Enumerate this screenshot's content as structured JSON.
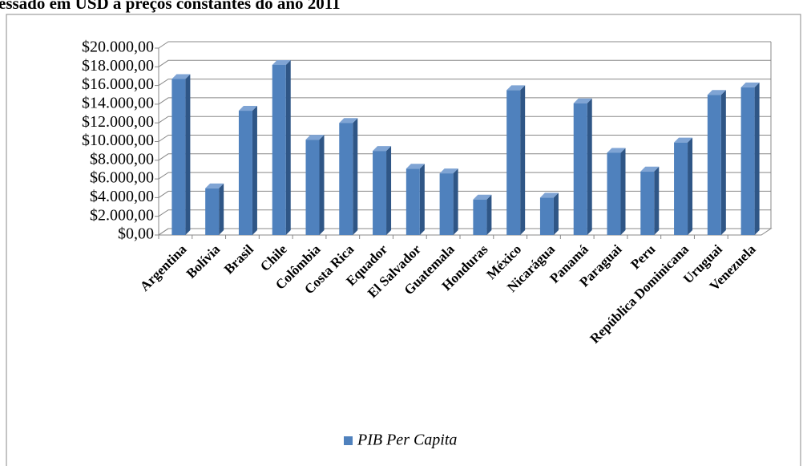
{
  "chart_data": {
    "type": "bar3d",
    "title": "essado em USD a preços constantes do ano 2011",
    "categories": [
      "Argentina",
      "Bolívia",
      "Brasil",
      "Chile",
      "Colômbia",
      "Costa Rica",
      "Equador",
      "El Salvador",
      "Guatemala",
      "Honduras",
      "México",
      "Nicarágua",
      "Panamá",
      "Paraguai",
      "Peru",
      "República Dominicana",
      "Uruguai",
      "Venezuela"
    ],
    "series": [
      {
        "name": "PIB Per Capita",
        "color": "#4f81bd",
        "values": [
          16700,
          5000,
          13300,
          18200,
          10200,
          12000,
          9000,
          7100,
          6600,
          3800,
          15500,
          4000,
          14100,
          8800,
          6800,
          9900,
          15000,
          15800
        ]
      }
    ],
    "ylim": [
      0,
      20000
    ],
    "yticks": [
      {
        "value": 0,
        "label": "$0,00"
      },
      {
        "value": 2000,
        "label": "$2.000,00"
      },
      {
        "value": 4000,
        "label": "$4.000,00"
      },
      {
        "value": 6000,
        "label": "$6.000,00"
      },
      {
        "value": 8000,
        "label": "$8.000,00"
      },
      {
        "value": 10000,
        "label": "$10.000,00"
      },
      {
        "value": 12000,
        "label": "$12.000,00"
      },
      {
        "value": 14000,
        "label": "$14.000,00"
      },
      {
        "value": 16000,
        "label": "$16.000,00"
      },
      {
        "value": 18000,
        "label": "$18.000,00"
      },
      {
        "value": 20000,
        "label": "$20.000,00"
      }
    ],
    "grid": true
  }
}
